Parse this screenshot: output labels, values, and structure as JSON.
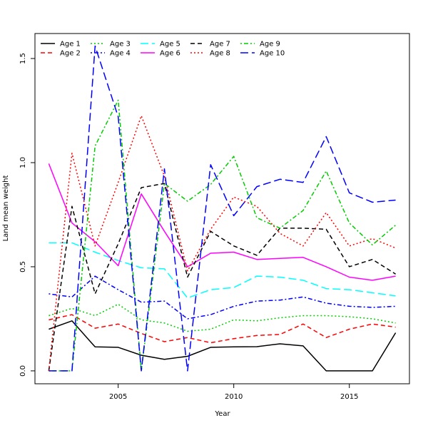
{
  "chart_data": {
    "type": "line",
    "title": "",
    "xlabel": "Year",
    "ylabel": "Land mean weight",
    "xlim": [
      2001.4,
      2017.6
    ],
    "ylim": [
      -0.062,
      1.62
    ],
    "x_ticks": [
      2005,
      2010,
      2015
    ],
    "y_ticks": [
      0.0,
      0.5,
      1.0,
      1.5
    ],
    "x_tick_labels": [
      "2005",
      "2010",
      "2015"
    ],
    "y_tick_labels": [
      "0.0",
      "0.5",
      "1.0",
      "1.5"
    ],
    "grid": false,
    "legend_position": "top-left",
    "x": [
      2002,
      2003,
      2004,
      2005,
      2006,
      2007,
      2008,
      2009,
      2010,
      2011,
      2012,
      2013,
      2014,
      2015,
      2016,
      2017
    ],
    "series": [
      {
        "name": "Age 1",
        "color": "#000000",
        "dash": "solid",
        "values": [
          0.2,
          0.24,
          0.115,
          0.113,
          0.075,
          0.055,
          0.07,
          0.113,
          0.115,
          0.116,
          0.13,
          0.12,
          0.0,
          0.0,
          0.0,
          0.183
        ]
      },
      {
        "name": "Age 2",
        "color": "#FF0000",
        "dash": "dashed",
        "values": [
          0.245,
          0.27,
          0.205,
          0.225,
          0.18,
          0.14,
          0.16,
          0.135,
          0.155,
          0.17,
          0.175,
          0.225,
          0.16,
          0.2,
          0.225,
          0.21
        ]
      },
      {
        "name": "Age 3",
        "color": "#00CD00",
        "dash": "dotted",
        "values": [
          0.265,
          0.3,
          0.265,
          0.32,
          0.245,
          0.23,
          0.19,
          0.2,
          0.245,
          0.24,
          0.255,
          0.265,
          0.265,
          0.26,
          0.25,
          0.23
        ]
      },
      {
        "name": "Age 4",
        "color": "#0000FF",
        "dash": "dotdash",
        "values": [
          0.37,
          0.355,
          0.455,
          0.39,
          0.33,
          0.335,
          0.25,
          0.27,
          0.31,
          0.335,
          0.34,
          0.355,
          0.325,
          0.31,
          0.305,
          0.31
        ]
      },
      {
        "name": "Age 5",
        "color": "#00FFFF",
        "dash": "longdash",
        "values": [
          0.615,
          0.615,
          0.57,
          0.53,
          0.495,
          0.49,
          0.35,
          0.39,
          0.4,
          0.455,
          0.45,
          0.435,
          0.395,
          0.39,
          0.375,
          0.36
        ]
      },
      {
        "name": "Age 6",
        "color": "#FF00FF",
        "dash": "solid",
        "values": [
          0.995,
          0.71,
          0.62,
          0.505,
          0.85,
          0.67,
          0.5,
          0.565,
          0.57,
          0.535,
          0.54,
          0.545,
          0.5,
          0.45,
          0.435,
          0.455
        ]
      },
      {
        "name": "Age 7",
        "color": "#000000",
        "dash": "dashed",
        "values": [
          0.0,
          0.79,
          0.37,
          0.61,
          0.88,
          0.9,
          0.45,
          0.67,
          0.6,
          0.555,
          0.685,
          0.685,
          0.68,
          0.5,
          0.535,
          0.465
        ]
      },
      {
        "name": "Age 8",
        "color": "#FF0000",
        "dash": "dotted",
        "values": [
          0.0,
          1.045,
          0.6,
          0.905,
          1.225,
          0.935,
          0.48,
          0.68,
          0.835,
          0.79,
          0.66,
          0.6,
          0.76,
          0.6,
          0.635,
          0.59
        ]
      },
      {
        "name": "Age 9",
        "color": "#00CD00",
        "dash": "dotdash",
        "values": [
          0.0,
          0.0,
          1.08,
          1.3,
          0.0,
          0.9,
          0.815,
          0.895,
          1.03,
          0.735,
          0.685,
          0.77,
          0.96,
          0.71,
          0.605,
          0.7
        ]
      },
      {
        "name": "Age 10",
        "color": "#0000FF",
        "dash": "longdash",
        "values": [
          0.0,
          0.0,
          1.56,
          1.22,
          0.0,
          0.97,
          0.0,
          0.99,
          0.745,
          0.885,
          0.92,
          0.905,
          1.125,
          0.855,
          0.81,
          0.82
        ]
      }
    ]
  }
}
